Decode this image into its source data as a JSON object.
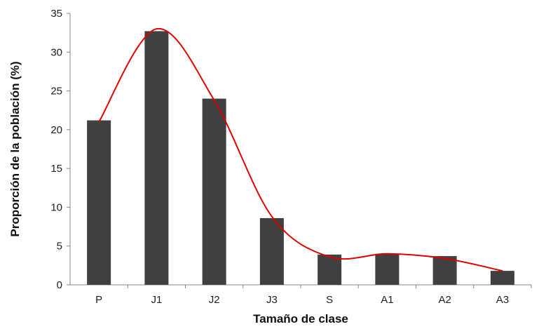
{
  "chart_data": {
    "type": "bar",
    "title": "",
    "xlabel": "Tamaño de clase",
    "ylabel": "Proporción de la población (%)",
    "categories": [
      "P",
      "J1",
      "J2",
      "J3",
      "S",
      "A1",
      "A2",
      "A3"
    ],
    "series": [
      {
        "values": [
          21.2,
          32.7,
          24.0,
          8.6,
          3.9,
          4.0,
          3.7,
          1.8
        ]
      }
    ],
    "trend_line": {
      "type": "smooth",
      "values": [
        21.0,
        33.0,
        23.8,
        8.8,
        3.6,
        4.0,
        3.4,
        1.8
      ]
    },
    "ylim": [
      0,
      35
    ],
    "yticks": [
      0,
      5,
      10,
      15,
      20,
      25,
      30,
      35
    ],
    "grid": false,
    "legend": "none",
    "colors": {
      "bar": "#404040",
      "trend": "#e00000",
      "axis": "#888888"
    }
  }
}
